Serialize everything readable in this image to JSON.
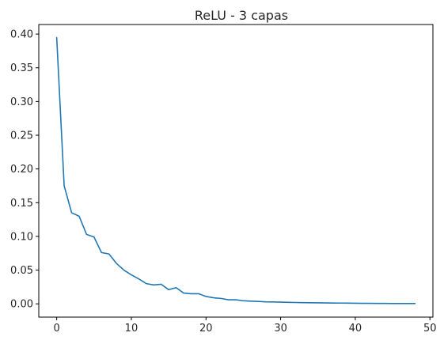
{
  "chart_data": {
    "type": "line",
    "title": "ReLU - 3 capas",
    "xlabel": "",
    "ylabel": "",
    "xlim": [
      -2.4,
      50.4
    ],
    "ylim": [
      -0.0197,
      0.4142
    ],
    "grid": false,
    "x_ticks": [
      0,
      10,
      20,
      30,
      40,
      50
    ],
    "x_tick_labels": [
      "0",
      "10",
      "20",
      "30",
      "40",
      "50"
    ],
    "y_ticks": [
      0.0,
      0.05,
      0.1,
      0.15,
      0.2,
      0.25,
      0.3,
      0.35,
      0.4
    ],
    "y_tick_labels": [
      "0.00",
      "0.05",
      "0.10",
      "0.15",
      "0.20",
      "0.25",
      "0.30",
      "0.35",
      "0.40"
    ],
    "series": [
      {
        "color": "#1f77b4",
        "x": [
          0,
          1,
          2,
          3,
          4,
          5,
          6,
          7,
          8,
          9,
          10,
          11,
          12,
          13,
          14,
          15,
          16,
          17,
          18,
          19,
          20,
          21,
          22,
          23,
          24,
          25,
          26,
          27,
          28,
          29,
          30,
          31,
          32,
          33,
          34,
          35,
          36,
          37,
          38,
          39,
          40,
          41,
          42,
          43,
          44,
          45,
          46,
          47,
          48
        ],
        "values": [
          0.395,
          0.175,
          0.135,
          0.13,
          0.103,
          0.099,
          0.076,
          0.074,
          0.06,
          0.05,
          0.043,
          0.037,
          0.03,
          0.028,
          0.029,
          0.021,
          0.024,
          0.016,
          0.015,
          0.015,
          0.011,
          0.009,
          0.008,
          0.006,
          0.006,
          0.0045,
          0.004,
          0.0035,
          0.003,
          0.0028,
          0.0025,
          0.0022,
          0.002,
          0.0018,
          0.0016,
          0.0015,
          0.0013,
          0.0012,
          0.0011,
          0.001,
          0.0009,
          0.0008,
          0.0007,
          0.0006,
          0.0006,
          0.0005,
          0.0005,
          0.0004,
          0.0004
        ]
      }
    ]
  }
}
